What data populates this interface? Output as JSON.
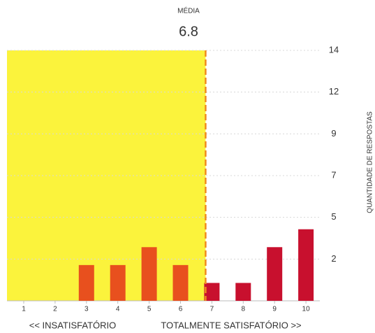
{
  "chart_data": {
    "type": "bar",
    "mean_label": "MÉDIA",
    "mean": 6.8,
    "y_axis_label": "QUANTIDADE DE RESPOSTAS",
    "left_note": "<< INSATISFATÓRIO",
    "right_note": "TOTALMENTE SATISFATÓRIO >>",
    "categories": [
      "1",
      "2",
      "3",
      "4",
      "5",
      "6",
      "7",
      "8",
      "9",
      "10"
    ],
    "values": [
      0,
      0,
      2,
      2,
      3,
      2,
      1,
      1,
      3,
      4
    ],
    "colors": [
      "#e8501e",
      "#e8501e",
      "#e8501e",
      "#e8501e",
      "#e8501e",
      "#e8501e",
      "#c8102e",
      "#c8102e",
      "#c8102e",
      "#c8102e"
    ],
    "mean_color": "#f08a1c",
    "highlight_color": "#fbf33c",
    "ylim": [
      0,
      14
    ],
    "yticks": [
      {
        "value": 2.333,
        "label": "2"
      },
      {
        "value": 4.667,
        "label": "5"
      },
      7,
      {
        "value": 9.333,
        "label": "9"
      },
      {
        "value": 11.667,
        "label": "12"
      },
      14
    ],
    "grid": true
  }
}
